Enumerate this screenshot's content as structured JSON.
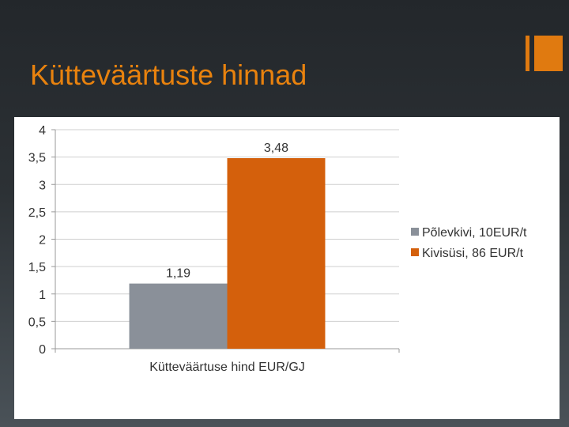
{
  "slide": {
    "title": "Kütteväärtuste hinnad",
    "accent_color": "#e07a10"
  },
  "chart_data": {
    "type": "bar",
    "categories": [
      "Kütteväärtuse hind EUR/GJ"
    ],
    "series": [
      {
        "name": "Põlevkivi, 10EUR/t",
        "values": [
          1.19
        ],
        "data_labels": [
          "1,19"
        ],
        "color": "#8a9099"
      },
      {
        "name": "Kivisüsi, 86 EUR/t",
        "values": [
          3.48
        ],
        "data_labels": [
          "3,48"
        ],
        "color": "#d4600c"
      }
    ],
    "ylim": [
      0,
      4
    ],
    "yticks": [
      0,
      0.5,
      1,
      1.5,
      2,
      2.5,
      3,
      3.5,
      4
    ],
    "ytick_labels": [
      "0",
      "0,5",
      "1",
      "1,5",
      "2",
      "2,5",
      "3",
      "3,5",
      "4"
    ],
    "xlabel": "",
    "ylabel": "",
    "grid": true,
    "legend": "right"
  }
}
